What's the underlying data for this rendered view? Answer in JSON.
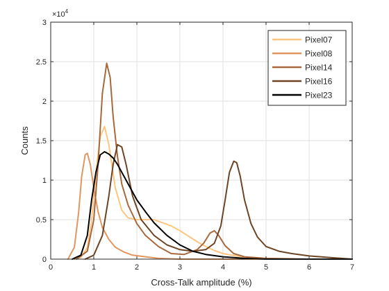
{
  "chart_data": {
    "type": "line",
    "title": "",
    "xlabel": "Cross-Talk amplitude (%)",
    "ylabel": "Counts",
    "xlim": [
      0,
      7
    ],
    "ylim": [
      0,
      3
    ],
    "y_scale_label": "×10",
    "y_scale_exponent": "4",
    "x_ticks": [
      "0",
      "1",
      "2",
      "3",
      "4",
      "5",
      "6",
      "7"
    ],
    "y_ticks": [
      "0",
      "0.5",
      "1",
      "1.5",
      "2",
      "2.5",
      "3"
    ],
    "grid": true,
    "legend_position": "top-right",
    "series": [
      {
        "name": "Pixel07",
        "color": "#ffc580",
        "x": [
          0.5,
          0.7,
          0.85,
          0.95,
          1.05,
          1.15,
          1.25,
          1.35,
          1.5,
          1.65,
          1.8,
          2.0,
          2.2,
          2.4,
          2.6,
          2.8,
          3.0,
          3.2,
          3.4,
          3.6,
          3.8,
          4.0,
          4.3,
          4.6,
          5.0,
          5.5,
          6.0,
          7.0
        ],
        "y": [
          0.0,
          0.02,
          0.15,
          0.5,
          1.1,
          1.55,
          1.68,
          1.45,
          0.9,
          0.62,
          0.52,
          0.5,
          0.5,
          0.5,
          0.46,
          0.42,
          0.36,
          0.29,
          0.22,
          0.16,
          0.11,
          0.07,
          0.04,
          0.02,
          0.01,
          0.0,
          0.0,
          0.0
        ]
      },
      {
        "name": "Pixel08",
        "color": "#e0965e",
        "x": [
          0.4,
          0.55,
          0.65,
          0.72,
          0.8,
          0.85,
          0.92,
          1.0,
          1.1,
          1.2,
          1.35,
          1.5,
          1.7,
          1.9,
          2.2,
          2.5,
          3.0,
          3.5,
          4.5,
          7.0
        ],
        "y": [
          0.0,
          0.15,
          0.6,
          1.05,
          1.32,
          1.34,
          1.2,
          0.9,
          0.6,
          0.4,
          0.25,
          0.15,
          0.09,
          0.05,
          0.03,
          0.01,
          0.0,
          0.0,
          0.0,
          0.0
        ]
      },
      {
        "name": "Pixel14",
        "color": "#a8683c",
        "x": [
          0.6,
          0.85,
          1.0,
          1.1,
          1.2,
          1.3,
          1.38,
          1.45,
          1.55,
          1.65,
          1.8,
          2.0,
          2.2,
          2.5,
          2.8,
          3.1,
          3.4,
          3.55,
          3.7,
          3.8,
          3.9,
          4.05,
          4.25,
          4.5,
          5.0,
          6.0,
          7.0
        ],
        "y": [
          0.0,
          0.1,
          0.5,
          1.2,
          2.1,
          2.48,
          2.3,
          1.8,
          1.3,
          0.95,
          0.68,
          0.45,
          0.3,
          0.16,
          0.07,
          0.06,
          0.12,
          0.2,
          0.33,
          0.36,
          0.3,
          0.17,
          0.07,
          0.03,
          0.01,
          0.0,
          0.0
        ]
      },
      {
        "name": "Pixel16",
        "color": "#6e4423",
        "x": [
          0.8,
          1.0,
          1.2,
          1.35,
          1.45,
          1.55,
          1.65,
          1.75,
          1.9,
          2.1,
          2.4,
          2.7,
          3.0,
          3.3,
          3.6,
          3.8,
          3.95,
          4.05,
          4.15,
          4.25,
          4.32,
          4.4,
          4.5,
          4.65,
          4.8,
          5.0,
          5.3,
          5.6,
          6.0,
          6.5,
          7.0
        ],
        "y": [
          0.0,
          0.05,
          0.3,
          0.8,
          1.2,
          1.45,
          1.42,
          1.2,
          0.8,
          0.5,
          0.3,
          0.18,
          0.12,
          0.1,
          0.12,
          0.2,
          0.42,
          0.75,
          1.1,
          1.24,
          1.22,
          1.05,
          0.75,
          0.45,
          0.28,
          0.16,
          0.1,
          0.07,
          0.04,
          0.02,
          0.0
        ]
      },
      {
        "name": "Pixel23",
        "color": "#000000",
        "x": [
          0.5,
          0.7,
          0.85,
          0.95,
          1.05,
          1.15,
          1.25,
          1.35,
          1.45,
          1.55,
          1.7,
          1.85,
          2.0,
          2.2,
          2.4,
          2.7,
          3.0,
          3.3,
          3.6,
          4.0,
          4.5,
          5.0,
          7.0
        ],
        "y": [
          0.0,
          0.05,
          0.3,
          0.75,
          1.1,
          1.32,
          1.36,
          1.33,
          1.28,
          1.2,
          1.05,
          0.9,
          0.75,
          0.6,
          0.46,
          0.3,
          0.18,
          0.1,
          0.06,
          0.03,
          0.01,
          0.0,
          0.0
        ]
      }
    ]
  }
}
